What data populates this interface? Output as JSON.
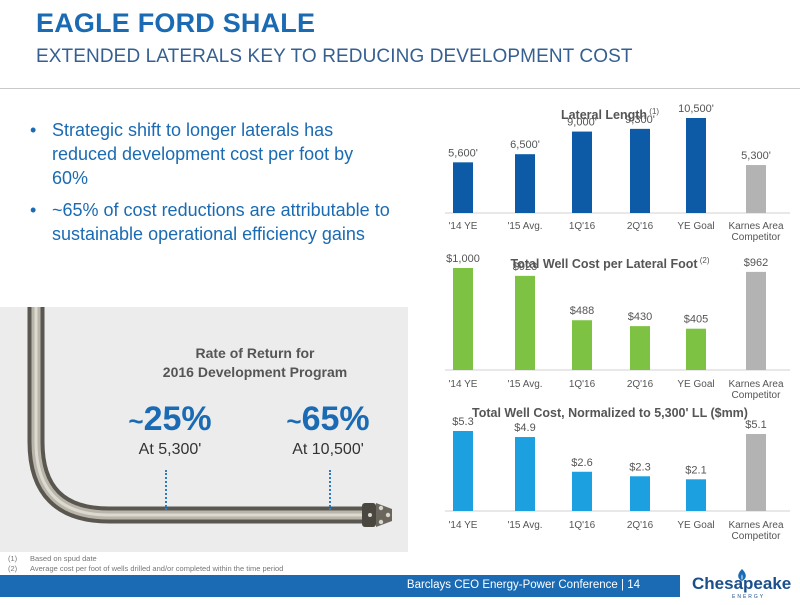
{
  "header": {
    "title": "EAGLE FORD SHALE",
    "subtitle": "EXTENDED LATERALS KEY TO REDUCING DEVELOPMENT COST"
  },
  "bullets": [
    "Strategic shift to longer laterals has reduced development cost per foot by 60%",
    "~65% of cost reductions are attributable to sustainable operational efficiency gains"
  ],
  "bullet_marker": "•",
  "well_panel": {
    "title_line1": "Rate of Return for",
    "title_line2": "2016 Development Program",
    "left_tilde": "~",
    "left_value": "25%",
    "left_sub": "At 5,300'",
    "right_tilde": "~",
    "right_value": "65%",
    "right_sub": "At 10,500'"
  },
  "footnotes": [
    {
      "marker": "(1)",
      "text": "Based on spud date"
    },
    {
      "marker": "(2)",
      "text": "Average cost per foot of wells drilled and/or completed within the time period"
    }
  ],
  "footer": {
    "text": "Barclays CEO Energy-Power Conference  |  14"
  },
  "logo": {
    "name": "Chesapeake",
    "tagline": "ENERGY"
  },
  "colors": {
    "brand_blue": "#1a6bb3",
    "navy": "#0d5aa7",
    "green": "#7dc243",
    "sky": "#1ca0e0",
    "gray": "#b3b3b3"
  },
  "chart_data": [
    {
      "type": "bar",
      "title": "Lateral Length",
      "title_note": "(1)",
      "categories": [
        "'14 YE",
        "'15 Avg.",
        "1Q'16",
        "2Q'16",
        "YE Goal",
        "Karnes Area Competitor"
      ],
      "values": [
        5600,
        6500,
        9000,
        9300,
        10500,
        5300
      ],
      "labels": [
        "5,600'",
        "6,500'",
        "9,000'",
        "9,300'",
        "10,500'",
        "5,300'"
      ],
      "color": "#0d5aa7",
      "competitor_color": "#b3b3b3",
      "ylim": [
        0,
        12000
      ]
    },
    {
      "type": "bar",
      "title": "Total Well Cost per Lateral Foot",
      "title_note": "(2)",
      "categories": [
        "'14 YE",
        "'15 Avg.",
        "1Q'16",
        "2Q'16",
        "YE Goal",
        "Karnes Area Competitor"
      ],
      "values": [
        1000,
        923,
        488,
        430,
        405,
        962
      ],
      "labels": [
        "$1,000",
        "$923",
        "$488",
        "$430",
        "$405",
        "$962"
      ],
      "color": "#7dc243",
      "competitor_color": "#b3b3b3",
      "ylim": [
        0,
        1100
      ]
    },
    {
      "type": "bar",
      "title": "Total Well Cost, Normalized to 5,300' LL ($mm)",
      "title_note": "",
      "categories": [
        "'14 YE",
        "'15 Avg.",
        "1Q'16",
        "2Q'16",
        "YE Goal",
        "Karnes Area Competitor"
      ],
      "values": [
        5.3,
        4.9,
        2.6,
        2.3,
        2.1,
        5.1
      ],
      "labels": [
        "$5.3",
        "$4.9",
        "$2.6",
        "$2.3",
        "$2.1",
        "$5.1"
      ],
      "color": "#1ca0e0",
      "competitor_color": "#b3b3b3",
      "ylim": [
        0,
        6
      ]
    }
  ]
}
